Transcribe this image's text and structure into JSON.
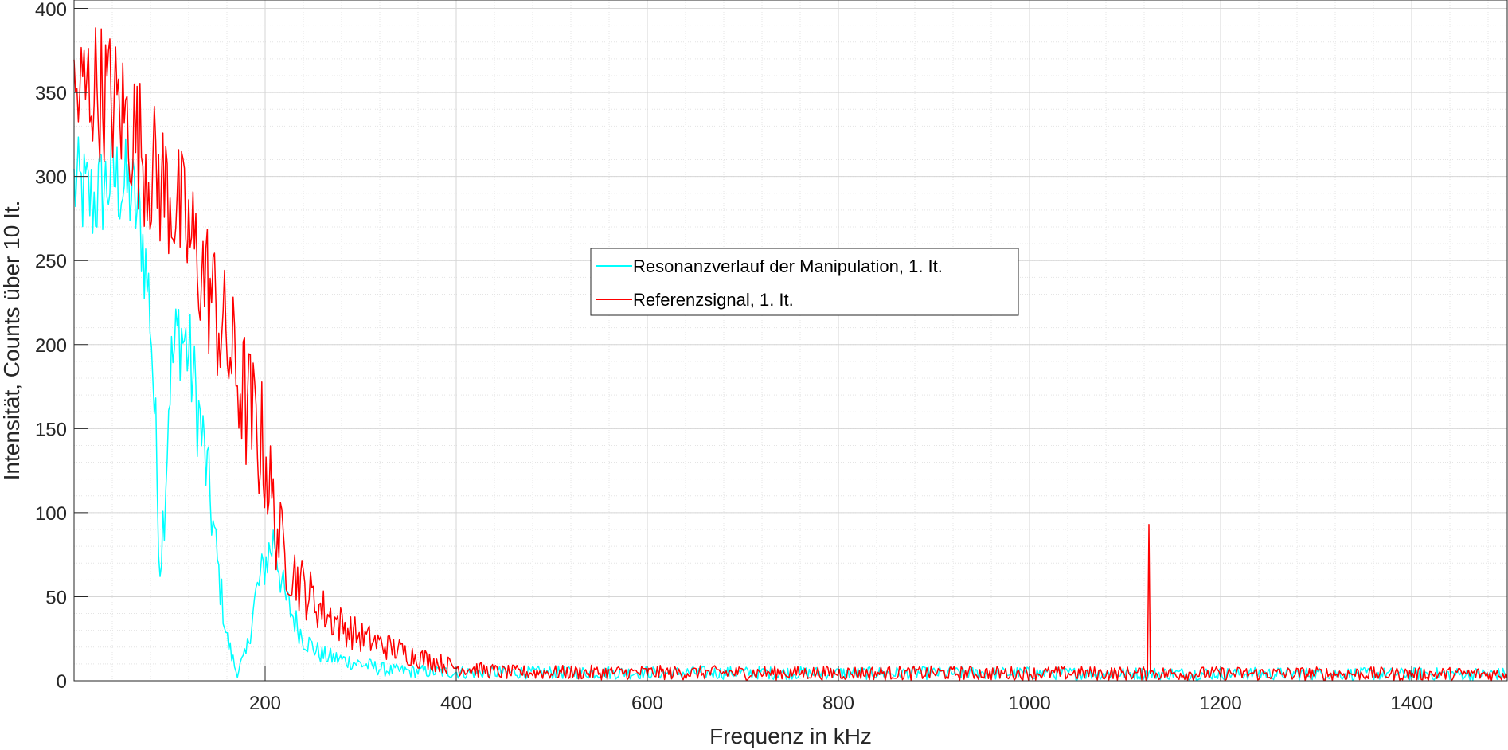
{
  "chart_data": {
    "type": "line",
    "xlabel": "Frequenz in kHz",
    "ylabel": "Intensität, Counts über 10 It.",
    "xlim": [
      0,
      1500
    ],
    "ylim": [
      0,
      405
    ],
    "x_ticks": [
      200,
      400,
      600,
      800,
      1000,
      1200,
      1400
    ],
    "y_ticks": [
      0,
      50,
      100,
      150,
      200,
      250,
      300,
      350,
      400
    ],
    "x_minor_step": 40,
    "y_minor_step": 10,
    "grid": true,
    "legend_position": "center",
    "series": [
      {
        "name": "Resonanzverlauf der Manipulation, 1. It.",
        "color": "#00FFFF",
        "envelope": [
          [
            0,
            295
          ],
          [
            20,
            285
          ],
          [
            40,
            300
          ],
          [
            60,
            290
          ],
          [
            70,
            270
          ],
          [
            80,
            220
          ],
          [
            85,
            150
          ],
          [
            90,
            70
          ],
          [
            95,
            110
          ],
          [
            100,
            180
          ],
          [
            110,
            210
          ],
          [
            120,
            195
          ],
          [
            130,
            160
          ],
          [
            140,
            120
          ],
          [
            150,
            70
          ],
          [
            160,
            25
          ],
          [
            170,
            5
          ],
          [
            180,
            15
          ],
          [
            190,
            50
          ],
          [
            200,
            70
          ],
          [
            210,
            85
          ],
          [
            220,
            50
          ],
          [
            240,
            25
          ],
          [
            260,
            15
          ],
          [
            300,
            10
          ],
          [
            330,
            6
          ],
          [
            400,
            5
          ],
          [
            1500,
            4
          ]
        ],
        "noise_amplitude": 28,
        "spikes": []
      },
      {
        "name": "Referenzsignal, 1. It.",
        "color": "#FF0000",
        "envelope": [
          [
            0,
            345
          ],
          [
            20,
            355
          ],
          [
            40,
            345
          ],
          [
            60,
            330
          ],
          [
            80,
            305
          ],
          [
            100,
            290
          ],
          [
            120,
            265
          ],
          [
            140,
            235
          ],
          [
            160,
            200
          ],
          [
            180,
            165
          ],
          [
            200,
            135
          ],
          [
            210,
            95
          ],
          [
            220,
            75
          ],
          [
            240,
            55
          ],
          [
            260,
            42
          ],
          [
            280,
            33
          ],
          [
            300,
            26
          ],
          [
            330,
            20
          ],
          [
            360,
            14
          ],
          [
            400,
            8
          ],
          [
            450,
            5
          ],
          [
            1500,
            4
          ]
        ],
        "noise_amplitude": 40,
        "spikes": [
          [
            1125,
            93
          ]
        ]
      }
    ]
  }
}
